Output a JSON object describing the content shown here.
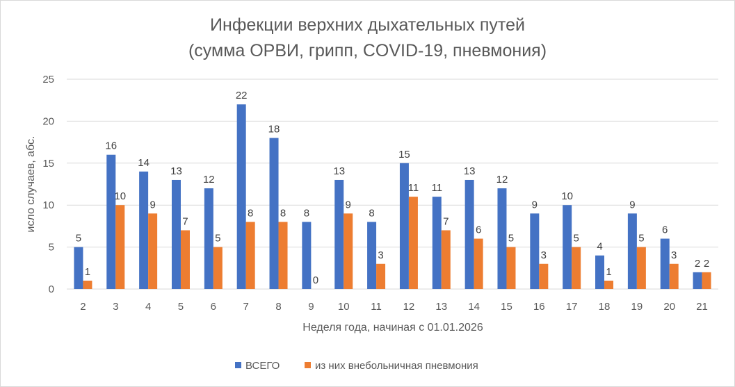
{
  "chart_data": {
    "type": "bar",
    "title": "Инфекции верхних дыхательных путей",
    "subtitle": "(сумма ОРВИ, грипп, COVID-19, пневмония)",
    "xlabel": "Неделя года, начиная с 01.01.2026",
    "ylabel": "исло случаев, абс.",
    "categories": [
      "2",
      "3",
      "4",
      "5",
      "6",
      "7",
      "8",
      "9",
      "10",
      "11",
      "12",
      "13",
      "14",
      "15",
      "16",
      "17",
      "18",
      "19",
      "20",
      "21"
    ],
    "series": [
      {
        "name": "ВСЕГО",
        "color": "#4472c4",
        "values": [
          5,
          16,
          14,
          13,
          12,
          22,
          18,
          8,
          13,
          8,
          15,
          11,
          13,
          12,
          9,
          10,
          4,
          9,
          6,
          2
        ]
      },
      {
        "name": "из них внебольничная пневмония",
        "color": "#ed7d31",
        "values": [
          1,
          10,
          9,
          7,
          5,
          8,
          8,
          0,
          9,
          3,
          11,
          7,
          6,
          5,
          3,
          5,
          1,
          5,
          3,
          2
        ]
      }
    ],
    "ylim": [
      0,
      25
    ],
    "yticks": [
      0,
      5,
      10,
      15,
      20,
      25
    ],
    "grid": true,
    "legend_position": "bottom",
    "data_labels": true
  }
}
